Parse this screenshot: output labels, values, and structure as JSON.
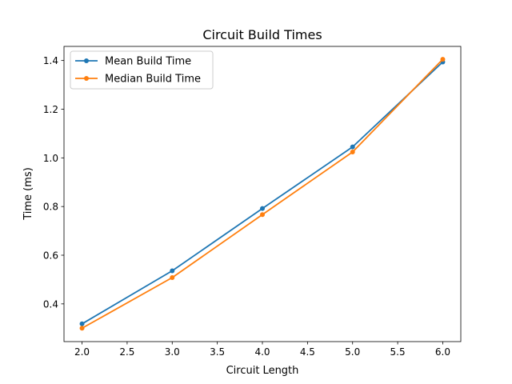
{
  "chart_data": {
    "type": "line",
    "title": "Circuit Build Times",
    "xlabel": "Circuit Length",
    "ylabel": "Time (ms)",
    "x": [
      2.0,
      3.0,
      4.0,
      5.0,
      6.0
    ],
    "xlim": [
      1.8,
      6.2
    ],
    "ylim": [
      0.245,
      1.458
    ],
    "xticks": [
      "2.0",
      "2.5",
      "3.0",
      "3.5",
      "4.0",
      "4.5",
      "5.0",
      "5.5",
      "6.0"
    ],
    "yticks": [
      "0.4",
      "0.6",
      "0.8",
      "1.0",
      "1.2",
      "1.4"
    ],
    "grid": false,
    "legend_position": "top-left",
    "series": [
      {
        "name": "Mean Build Time",
        "color": "#1f77b4",
        "marker": "circle",
        "values": [
          0.318,
          0.536,
          0.792,
          1.045,
          1.394
        ]
      },
      {
        "name": "Median Build Time",
        "color": "#ff7f0e",
        "marker": "circle",
        "values": [
          0.3,
          0.508,
          0.767,
          1.024,
          1.405
        ]
      }
    ]
  }
}
